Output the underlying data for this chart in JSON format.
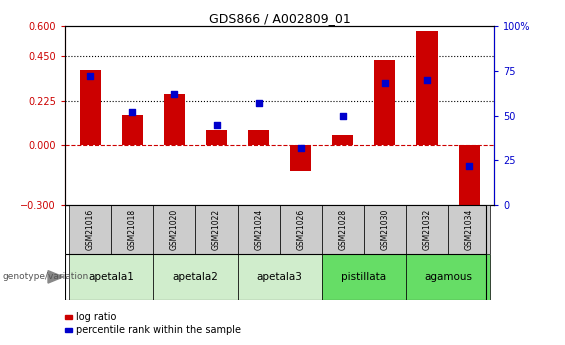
{
  "title": "GDS866 / A002809_01",
  "samples": [
    "GSM21016",
    "GSM21018",
    "GSM21020",
    "GSM21022",
    "GSM21024",
    "GSM21026",
    "GSM21028",
    "GSM21030",
    "GSM21032",
    "GSM21034"
  ],
  "log_ratio": [
    0.38,
    0.155,
    0.26,
    0.08,
    0.08,
    -0.13,
    0.055,
    0.43,
    0.575,
    -0.35
  ],
  "percentile_rank": [
    72,
    52,
    62,
    45,
    57,
    32,
    50,
    68,
    70,
    22
  ],
  "groups": [
    {
      "name": "apetala1",
      "indices": [
        0,
        1
      ],
      "color": "#d0edcc"
    },
    {
      "name": "apetala2",
      "indices": [
        2,
        3
      ],
      "color": "#d0edcc"
    },
    {
      "name": "apetala3",
      "indices": [
        4,
        5
      ],
      "color": "#d0edcc"
    },
    {
      "name": "pistillata",
      "indices": [
        6,
        7
      ],
      "color": "#66dd66"
    },
    {
      "name": "agamous",
      "indices": [
        8,
        9
      ],
      "color": "#66dd66"
    }
  ],
  "ylim_left": [
    -0.3,
    0.6
  ],
  "ylim_right": [
    0,
    100
  ],
  "yticks_left": [
    -0.3,
    0.0,
    0.225,
    0.45,
    0.6
  ],
  "yticks_right": [
    0,
    25,
    50,
    75,
    100
  ],
  "hlines": [
    0.225,
    0.45
  ],
  "bar_color": "#cc0000",
  "dot_color": "#0000cc",
  "zero_line_color": "#cc0000",
  "legend_bar_label": "log ratio",
  "legend_dot_label": "percentile rank within the sample",
  "sample_box_color": "#cccccc",
  "genotype_label": "genotype/variation"
}
